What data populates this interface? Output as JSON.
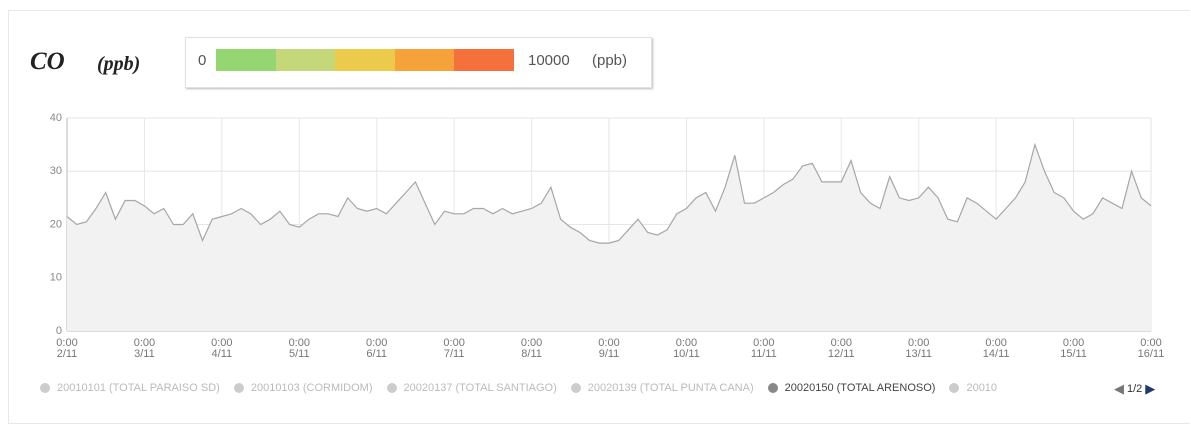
{
  "title": "CO",
  "unit": "(ppb)",
  "scale": {
    "min": "0",
    "max": "10000",
    "unit": "(ppb)",
    "colors": [
      "#93d672",
      "#c4d879",
      "#ecca4b",
      "#f6a23a",
      "#f5713b"
    ]
  },
  "chart_data": {
    "type": "line",
    "categories": [
      "0:00\n2/11",
      null,
      null,
      null,
      null,
      null,
      null,
      null,
      "0:00\n3/11",
      null,
      null,
      null,
      null,
      null,
      null,
      null,
      "0:00\n4/11",
      null,
      null,
      null,
      null,
      null,
      null,
      null,
      "0:00\n5/11",
      null,
      null,
      null,
      null,
      null,
      null,
      null,
      "0:00\n6/11",
      null,
      null,
      null,
      null,
      null,
      null,
      null,
      "0:00\n7/11",
      null,
      null,
      null,
      null,
      null,
      null,
      null,
      "0:00\n8/11",
      null,
      null,
      null,
      null,
      null,
      null,
      null,
      "0:00\n9/11",
      null,
      null,
      null,
      null,
      null,
      null,
      null,
      "0:00\n10/11",
      null,
      null,
      null,
      null,
      null,
      null,
      null,
      "0:00\n11/11",
      null,
      null,
      null,
      null,
      null,
      null,
      null,
      "0:00\n12/11",
      null,
      null,
      null,
      null,
      null,
      null,
      null,
      "0:00\n13/11",
      null,
      null,
      null,
      null,
      null,
      null,
      null,
      "0:00\n14/11",
      null,
      null,
      null,
      null,
      null,
      null,
      null,
      "0:00\n15/11",
      null,
      null,
      null,
      null,
      null,
      null,
      null,
      "0:00\n16/11"
    ],
    "series": [
      {
        "name": "20010101 (TOTAL PARAISO SD)",
        "color": "#cccccc"
      },
      {
        "name": "20010103 (CORMIDOM)",
        "color": "#cccccc"
      },
      {
        "name": "20020137 (TOTAL SANTIAGO)",
        "color": "#cccccc"
      },
      {
        "name": "20020139 (TOTAL PUNTA CANA)",
        "color": "#cccccc"
      },
      {
        "name": "20020150 (TOTAL ARENOSO)",
        "color": "#a6a6a6",
        "values": [
          21.5,
          20,
          20.5,
          23,
          26,
          21,
          24.5,
          24.5,
          23.5,
          22,
          23,
          20,
          20,
          22,
          17,
          21,
          21.5,
          22,
          23,
          22,
          20,
          21,
          22.5,
          20,
          19.5,
          21,
          22,
          22,
          21.5,
          25,
          23,
          22.5,
          23,
          22,
          24,
          26,
          28,
          24,
          20,
          22.5,
          22,
          22,
          23,
          23,
          22,
          23,
          22,
          22.5,
          23,
          24,
          27,
          21,
          19.5,
          18.5,
          17,
          16.5,
          16.5,
          17,
          19,
          21,
          18.5,
          18,
          19,
          22,
          23,
          25,
          26,
          22.5,
          27,
          33,
          24,
          24,
          25,
          26,
          27.5,
          28.5,
          31,
          31.5,
          28,
          28,
          28,
          32,
          26,
          24,
          23,
          29,
          25,
          24.5,
          25,
          27,
          25,
          21,
          20.5,
          25,
          24,
          22.5,
          21,
          23,
          25,
          28,
          35,
          30,
          26,
          25,
          22.5,
          21,
          22,
          25,
          24,
          23,
          30,
          25,
          23.5
        ]
      },
      {
        "name": "20010",
        "color": "#cccccc"
      }
    ],
    "ylim": [
      0,
      40
    ],
    "yticks": [
      0,
      10,
      20,
      30,
      40
    ],
    "grid": true,
    "legend_page": "1/2"
  }
}
